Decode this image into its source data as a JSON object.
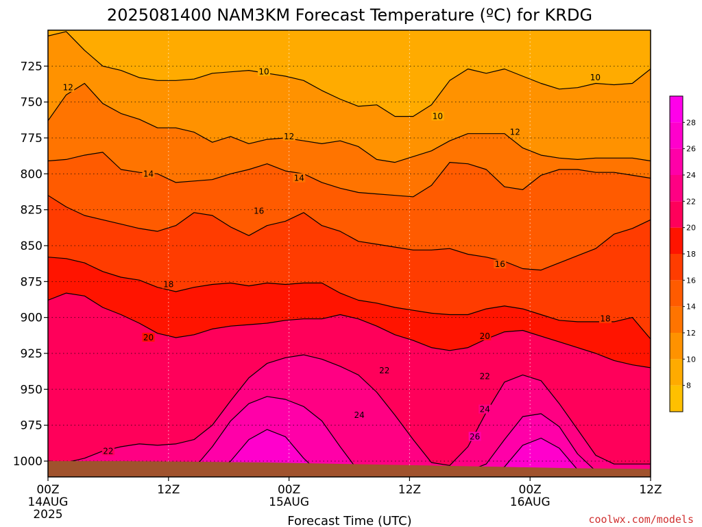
{
  "chart_data": {
    "type": "heatmap",
    "title": "2025081400 NAM3KM Forecast Temperature (ºC) for KRDG",
    "xlabel": "Forecast Time (UTC)",
    "ylabel": "",
    "x_ticks": [
      {
        "hour": 0,
        "l1": "00Z",
        "l2": "14AUG",
        "l3": "2025"
      },
      {
        "hour": 12,
        "l1": "12Z",
        "l2": "",
        "l3": ""
      },
      {
        "hour": 24,
        "l1": "00Z",
        "l2": "15AUG",
        "l3": ""
      },
      {
        "hour": 36,
        "l1": "12Z",
        "l2": "",
        "l3": ""
      },
      {
        "hour": 48,
        "l1": "00Z",
        "l2": "16AUG",
        "l3": ""
      },
      {
        "hour": 60,
        "l1": "12Z",
        "l2": "",
        "l3": ""
      }
    ],
    "xlim": [
      0,
      60
    ],
    "y_ticks": [
      725,
      750,
      775,
      800,
      825,
      850,
      875,
      900,
      925,
      950,
      975,
      1000
    ],
    "ylim": [
      700,
      1011
    ],
    "y_inverted": true,
    "grid": true,
    "colorbar": {
      "ticks": [
        8,
        10,
        12,
        14,
        16,
        18,
        20,
        22,
        24,
        26,
        28
      ],
      "levels": [
        {
          "from": 6,
          "to": 8,
          "color": "#ffc000"
        },
        {
          "from": 8,
          "to": 10,
          "color": "#ffab00"
        },
        {
          "from": 10,
          "to": 12,
          "color": "#ff9200"
        },
        {
          "from": 12,
          "to": 14,
          "color": "#ff7400"
        },
        {
          "from": 14,
          "to": 16,
          "color": "#ff5b00"
        },
        {
          "from": 16,
          "to": 18,
          "color": "#ff3c00"
        },
        {
          "from": 18,
          "to": 20,
          "color": "#ff1400"
        },
        {
          "from": 20,
          "to": 22,
          "color": "#ff005a"
        },
        {
          "from": 22,
          "to": 24,
          "color": "#ff0083"
        },
        {
          "from": 24,
          "to": 26,
          "color": "#ff00a8"
        },
        {
          "from": 26,
          "to": 28,
          "color": "#ff00cc"
        },
        {
          "from": 28,
          "to": 30,
          "color": "#ff00ea"
        }
      ]
    },
    "surface_color": "#a0522d",
    "isotherms": [
      {
        "temp": 10,
        "pressures": [
          704,
          701,
          714,
          725,
          728,
          733,
          735,
          735,
          734,
          730,
          729,
          728,
          730,
          732,
          735,
          742,
          748,
          753,
          752,
          760,
          760,
          752,
          735,
          727,
          730,
          727,
          732,
          737,
          741,
          740,
          737,
          738,
          737,
          727
        ],
        "labels": [
          {
            "hour": 21.5,
            "p": 729
          },
          {
            "hour": 38.8,
            "p": 760
          },
          {
            "hour": 54.5,
            "p": 733
          }
        ]
      },
      {
        "temp": 12,
        "pressures": [
          763,
          745,
          737,
          751,
          758,
          762,
          768,
          768,
          771,
          778,
          774,
          779,
          776,
          775,
          777,
          779,
          777,
          781,
          790,
          792,
          788,
          784,
          777,
          772,
          772,
          772,
          782,
          787,
          789,
          790,
          789,
          789,
          789,
          791
        ],
        "labels": [
          {
            "hour": 2.0,
            "p": 740
          },
          {
            "hour": 24.0,
            "p": 774
          },
          {
            "hour": 46.5,
            "p": 771
          }
        ]
      },
      {
        "temp": 14,
        "pressures": [
          791,
          790,
          787,
          785,
          797,
          799,
          800,
          806,
          805,
          804,
          800,
          797,
          793,
          798,
          800,
          806,
          810,
          813,
          814,
          815,
          816,
          808,
          792,
          793,
          797,
          809,
          811,
          801,
          797,
          797,
          799,
          799,
          801,
          803
        ],
        "labels": [
          {
            "hour": 10.0,
            "p": 800
          },
          {
            "hour": 25.0,
            "p": 803
          }
        ]
      },
      {
        "temp": 16,
        "pressures": [
          815,
          823,
          829,
          832,
          835,
          838,
          840,
          836,
          827,
          829,
          837,
          843,
          836,
          833,
          827,
          836,
          840,
          847,
          849,
          851,
          853,
          853,
          852,
          856,
          858,
          861,
          866,
          867,
          862,
          857,
          852,
          842,
          838,
          832
        ],
        "labels": [
          {
            "hour": 21.0,
            "p": 826
          },
          {
            "hour": 45.0,
            "p": 863
          }
        ]
      },
      {
        "temp": 18,
        "pressures": [
          858,
          859,
          862,
          868,
          872,
          874,
          879,
          882,
          879,
          877,
          876,
          878,
          876,
          877,
          876,
          876,
          883,
          888,
          890,
          893,
          895,
          897,
          898,
          898,
          894,
          892,
          894,
          898,
          902,
          903,
          903,
          903,
          900,
          915
        ],
        "labels": [
          {
            "hour": 12.0,
            "p": 877
          },
          {
            "hour": 55.5,
            "p": 901
          }
        ]
      },
      {
        "temp": 20,
        "pressures": [
          888,
          883,
          885,
          893,
          898,
          904,
          911,
          914,
          912,
          908,
          906,
          905,
          904,
          902,
          901,
          901,
          898,
          901,
          906,
          912,
          916,
          921,
          923,
          921,
          915,
          910,
          909,
          913,
          917,
          921,
          925,
          930,
          933,
          935
        ],
        "labels": [
          {
            "hour": 10.0,
            "p": 914
          },
          {
            "hour": 43.5,
            "p": 913
          }
        ]
      },
      {
        "temp": 22,
        "pressures": [
          1000,
          1001,
          998,
          993,
          990,
          988,
          989,
          988,
          985,
          975,
          958,
          942,
          932,
          928,
          926,
          929,
          934,
          940,
          952,
          968,
          985,
          1001,
          1003,
          990,
          966,
          945,
          940,
          944,
          960,
          978,
          996,
          1002,
          1002,
          1002
        ],
        "labels": [
          {
            "hour": 6.0,
            "p": 993
          },
          {
            "hour": 33.5,
            "p": 937
          },
          {
            "hour": 43.5,
            "p": 941
          }
        ]
      },
      {
        "temp": 24,
        "pressures": [
          1007,
          1007,
          1007,
          1007,
          1007,
          1007,
          1007,
          1007,
          1005,
          990,
          972,
          960,
          955,
          957,
          962,
          972,
          990,
          1007,
          1007,
          1007,
          1007,
          1007,
          1007,
          1007,
          1002,
          985,
          969,
          967,
          976,
          995,
          1007,
          1007,
          1007,
          1007
        ],
        "labels": [
          {
            "hour": 31.0,
            "p": 968
          },
          {
            "hour": 43.5,
            "p": 964
          }
        ]
      },
      {
        "temp": 26,
        "pressures": [
          1010,
          1010,
          1010,
          1010,
          1010,
          1010,
          1010,
          1010,
          1010,
          1010,
          1000,
          985,
          978,
          983,
          998,
          1010,
          1010,
          1010,
          1010,
          1010,
          1010,
          1010,
          1010,
          1010,
          1010,
          1004,
          989,
          984,
          991,
          1006,
          1010,
          1010,
          1010,
          1010
        ],
        "labels": [
          {
            "hour": 42.5,
            "p": 983
          }
        ]
      }
    ]
  }
}
